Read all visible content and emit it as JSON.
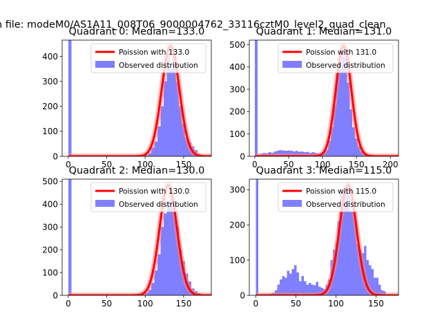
{
  "figure": {
    "suptitle": "n file: modeM0/AS1A11_008T06_9000004762_33116cztM0_level2_quad_clean"
  },
  "colors": {
    "hist": "#7f7fff",
    "curve": "#ff0000",
    "curve_glow": "#ff8080",
    "axis": "#000000",
    "background": "#ffffff"
  },
  "chart_data": [
    {
      "type": "bar",
      "title": "Quadrant 0: Median=133.0",
      "xlim": [
        -8,
        186
      ],
      "ylim": [
        0,
        465
      ],
      "xticks": [
        0,
        50,
        100,
        150
      ],
      "yticks": [
        0,
        100,
        200,
        300,
        400
      ],
      "bin_width": 4,
      "bins": [
        [
          0,
          465
        ],
        [
          88,
          2
        ],
        [
          92,
          4
        ],
        [
          96,
          3
        ],
        [
          100,
          6
        ],
        [
          104,
          12
        ],
        [
          108,
          35
        ],
        [
          112,
          60
        ],
        [
          116,
          120
        ],
        [
          120,
          200
        ],
        [
          124,
          300
        ],
        [
          128,
          410
        ],
        [
          132,
          350
        ],
        [
          136,
          410
        ],
        [
          140,
          300
        ],
        [
          144,
          200
        ],
        [
          148,
          130
        ],
        [
          152,
          75
        ],
        [
          156,
          55
        ],
        [
          160,
          40
        ],
        [
          164,
          25
        ],
        [
          168,
          10
        ],
        [
          172,
          5
        ]
      ],
      "curve": {
        "mean": 133.0,
        "sigma": 11.53
      },
      "legend": {
        "location": "upper right",
        "entries": [
          "Poission with 133.0",
          "Observed distribution"
        ]
      }
    },
    {
      "type": "bar",
      "title": "Quadrant 1: Median=131.0",
      "xlim": [
        -8,
        212
      ],
      "ylim": [
        0,
        520
      ],
      "xticks": [
        0,
        50,
        100,
        150,
        200
      ],
      "yticks": [
        0,
        100,
        200,
        300,
        400,
        500
      ],
      "bin_width": 4,
      "bins": [
        [
          0,
          520
        ],
        [
          4,
          8
        ],
        [
          8,
          12
        ],
        [
          12,
          15
        ],
        [
          16,
          14
        ],
        [
          20,
          18
        ],
        [
          24,
          16
        ],
        [
          28,
          22
        ],
        [
          32,
          25
        ],
        [
          36,
          28
        ],
        [
          40,
          26
        ],
        [
          44,
          24
        ],
        [
          48,
          26
        ],
        [
          52,
          24
        ],
        [
          56,
          22
        ],
        [
          60,
          25
        ],
        [
          64,
          20
        ],
        [
          68,
          22
        ],
        [
          72,
          18
        ],
        [
          76,
          20
        ],
        [
          80,
          15
        ],
        [
          84,
          18
        ],
        [
          88,
          15
        ],
        [
          92,
          12
        ],
        [
          96,
          12
        ],
        [
          100,
          18
        ],
        [
          104,
          30
        ],
        [
          108,
          70
        ],
        [
          112,
          130
        ],
        [
          116,
          230
        ],
        [
          120,
          370
        ],
        [
          124,
          390
        ],
        [
          128,
          480
        ],
        [
          132,
          440
        ],
        [
          136,
          330
        ],
        [
          140,
          210
        ],
        [
          144,
          130
        ],
        [
          148,
          80
        ],
        [
          152,
          45
        ],
        [
          156,
          22
        ],
        [
          160,
          15
        ],
        [
          164,
          10
        ],
        [
          168,
          8
        ],
        [
          172,
          6
        ],
        [
          176,
          4
        ],
        [
          180,
          4
        ],
        [
          184,
          3
        ],
        [
          188,
          3
        ],
        [
          192,
          2
        ],
        [
          196,
          2
        ],
        [
          200,
          2
        ]
      ],
      "curve": {
        "mean": 131.0,
        "sigma": 11.45
      },
      "legend": {
        "location": "upper right",
        "entries": [
          "Poission with 131.0",
          "Observed distribution"
        ]
      }
    },
    {
      "type": "bar",
      "title": "Quadrant 2: Median=130.0",
      "xlim": [
        -8,
        186
      ],
      "ylim": [
        0,
        510
      ],
      "xticks": [
        0,
        50,
        100,
        150
      ],
      "yticks": [
        0,
        100,
        200,
        300,
        400,
        500
      ],
      "bin_width": 4,
      "bins": [
        [
          0,
          510
        ],
        [
          92,
          3
        ],
        [
          96,
          5
        ],
        [
          100,
          12
        ],
        [
          104,
          25
        ],
        [
          108,
          55
        ],
        [
          112,
          110
        ],
        [
          116,
          180
        ],
        [
          120,
          300
        ],
        [
          124,
          360
        ],
        [
          128,
          410
        ],
        [
          132,
          480
        ],
        [
          136,
          390
        ],
        [
          140,
          300
        ],
        [
          144,
          200
        ],
        [
          148,
          150
        ],
        [
          152,
          95
        ],
        [
          156,
          60
        ],
        [
          160,
          30
        ],
        [
          164,
          18
        ],
        [
          168,
          10
        ],
        [
          172,
          4
        ]
      ],
      "curve": {
        "mean": 130.0,
        "sigma": 11.4
      },
      "legend": {
        "location": "upper right",
        "entries": [
          "Poission with 130.0",
          "Observed distribution"
        ]
      }
    },
    {
      "type": "bar",
      "title": "Quadrant 3: Median=115.0",
      "xlim": [
        -8,
        178
      ],
      "ylim": [
        0,
        330
      ],
      "xticks": [
        0,
        50,
        100,
        150
      ],
      "yticks": [
        0,
        100,
        200,
        300
      ],
      "bin_width": 3,
      "bins": [
        [
          0,
          330
        ],
        [
          15,
          3
        ],
        [
          18,
          5
        ],
        [
          21,
          8
        ],
        [
          24,
          15
        ],
        [
          27,
          30
        ],
        [
          30,
          45
        ],
        [
          33,
          55
        ],
        [
          36,
          50
        ],
        [
          39,
          70
        ],
        [
          42,
          62
        ],
        [
          45,
          75
        ],
        [
          48,
          85
        ],
        [
          51,
          65
        ],
        [
          54,
          40
        ],
        [
          57,
          55
        ],
        [
          60,
          40
        ],
        [
          63,
          30
        ],
        [
          66,
          35
        ],
        [
          69,
          30
        ],
        [
          72,
          28
        ],
        [
          75,
          38
        ],
        [
          78,
          25
        ],
        [
          81,
          22
        ],
        [
          84,
          18
        ],
        [
          87,
          30
        ],
        [
          90,
          45
        ],
        [
          93,
          100
        ],
        [
          96,
          130
        ],
        [
          99,
          150
        ],
        [
          102,
          210
        ],
        [
          105,
          290
        ],
        [
          108,
          295
        ],
        [
          111,
          290
        ],
        [
          114,
          300
        ],
        [
          117,
          240
        ],
        [
          120,
          240
        ],
        [
          123,
          210
        ],
        [
          126,
          145
        ],
        [
          129,
          130
        ],
        [
          132,
          120
        ],
        [
          135,
          140
        ],
        [
          138,
          100
        ],
        [
          141,
          85
        ],
        [
          144,
          75
        ],
        [
          147,
          50
        ],
        [
          150,
          50
        ],
        [
          153,
          30
        ],
        [
          156,
          15
        ],
        [
          159,
          12
        ]
      ],
      "curve": {
        "mean": 115.0,
        "sigma": 10.72
      },
      "legend": {
        "location": "upper right",
        "entries": [
          "Poission with 115.0",
          "Observed distribution"
        ]
      }
    }
  ]
}
